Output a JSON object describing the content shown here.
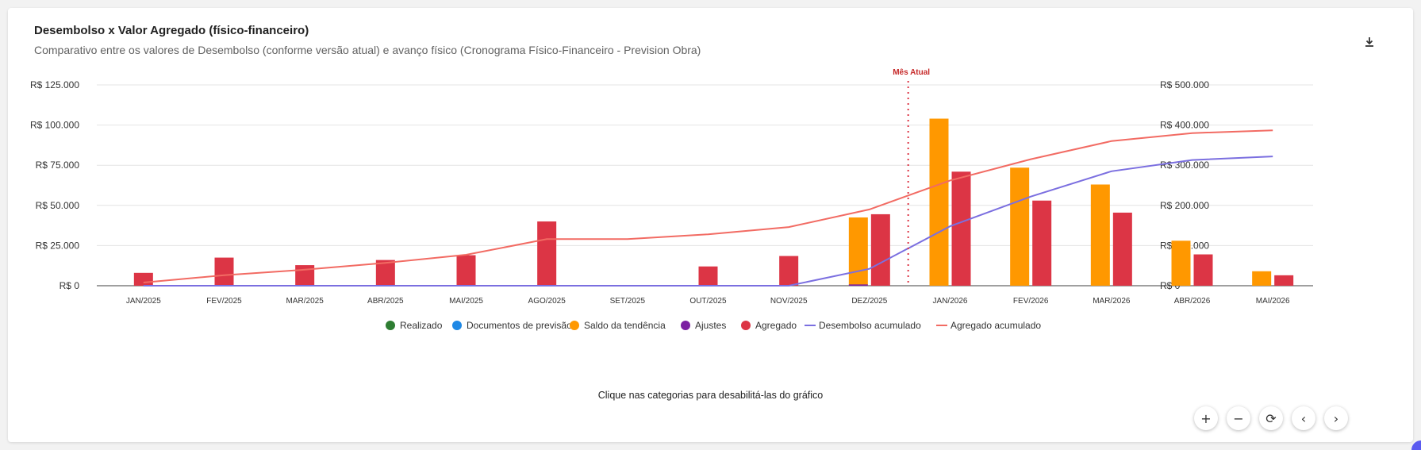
{
  "card": {
    "title": "Desembolso x Valor Agregado (físico-financeiro)",
    "subtitle": "Comparativo entre os valores de Desembolso (conforme versão atual) e avanço físico (Cronograma Físico-Financeiro - Prevision Obra)",
    "hint": "Clique nas categorias para desabilitá-las do gráfico"
  },
  "controls": {
    "zoom_in": "+",
    "zoom_out": "−",
    "reset": "⟳",
    "prev": "‹",
    "next": "›"
  },
  "chart_data": {
    "type": "bar",
    "categories": [
      "JAN/2025",
      "FEV/2025",
      "MAR/2025",
      "ABR/2025",
      "MAI/2025",
      "AGO/2025",
      "SET/2025",
      "OUT/2025",
      "NOV/2025",
      "DEZ/2025",
      "JAN/2026",
      "FEV/2026",
      "MAR/2026",
      "ABR/2026",
      "MAI/2026"
    ],
    "left_axis": {
      "ylim": [
        0,
        125000
      ],
      "ticks": [
        0,
        25000,
        50000,
        75000,
        100000,
        125000
      ],
      "tick_labels": [
        "R$ 0",
        "R$ 25.000",
        "R$ 50.000",
        "R$ 75.000",
        "R$ 100.000",
        "R$ 125.000"
      ]
    },
    "right_axis": {
      "ylim": [
        0,
        500000
      ],
      "ticks": [
        0,
        100000,
        200000,
        300000,
        400000,
        500000
      ],
      "tick_labels": [
        "R$ 0",
        "R$ 100.000",
        "R$ 200.000",
        "R$ 300.000",
        "R$ 400.000",
        "R$ 500.000"
      ]
    },
    "series": [
      {
        "name": "Realizado",
        "kind": "bar",
        "color": "#2e7d32",
        "values": [
          0,
          0,
          0,
          0,
          0,
          0,
          0,
          0,
          0,
          0,
          0,
          0,
          0,
          0,
          0
        ]
      },
      {
        "name": "Documentos de previsão",
        "kind": "bar",
        "color": "#1e88e5",
        "values": [
          0,
          0,
          0,
          0,
          0,
          0,
          0,
          0,
          0,
          0,
          0,
          0,
          0,
          0,
          0
        ]
      },
      {
        "name": "Saldo da tendência",
        "kind": "bar",
        "color": "#ff9800",
        "values": [
          0,
          0,
          0,
          0,
          0,
          0,
          0,
          0,
          0,
          42500,
          104000,
          73500,
          63000,
          28000,
          9000
        ]
      },
      {
        "name": "Ajustes",
        "kind": "bar",
        "color": "#7b1fa2",
        "values": [
          0,
          0,
          0,
          0,
          0,
          0,
          0,
          0,
          0,
          800,
          0,
          0,
          0,
          0,
          0
        ]
      },
      {
        "name": "Agregado",
        "kind": "bar",
        "color": "#dc3545",
        "values": [
          8000,
          17500,
          12800,
          16000,
          19000,
          40000,
          0,
          12000,
          18500,
          44500,
          71000,
          53000,
          45500,
          19500,
          6500
        ]
      },
      {
        "name": "Desembolso acumulado",
        "kind": "line",
        "axis": "right",
        "color": "#7b6fe0",
        "values": [
          0,
          0,
          0,
          0,
          0,
          0,
          0,
          0,
          0,
          42000,
          148000,
          222000,
          285000,
          313000,
          322000
        ]
      },
      {
        "name": "Agregado acumulado",
        "kind": "line",
        "axis": "right",
        "color": "#f26b63",
        "values": [
          8000,
          26000,
          40000,
          57000,
          77000,
          116000,
          116000,
          128000,
          146000,
          190000,
          262000,
          315000,
          360000,
          380000,
          387000
        ]
      }
    ],
    "annotation": {
      "label": "Mês Atual",
      "between": [
        "DEZ/2025",
        "JAN/2026"
      ]
    }
  }
}
